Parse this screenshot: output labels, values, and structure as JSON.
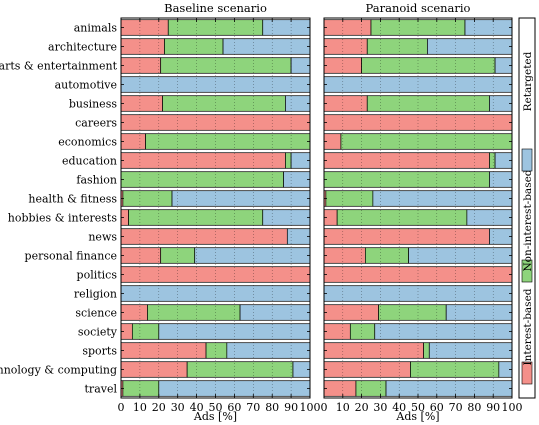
{
  "chart_data": [
    {
      "type": "bar",
      "orientation": "horizontal",
      "stacked": true,
      "title": "Baseline scenario",
      "xlabel": "Ads [%]",
      "xlim": [
        0,
        100
      ],
      "xticks": [
        0,
        10,
        20,
        30,
        40,
        50,
        60,
        70,
        80,
        90,
        100
      ],
      "grid": true,
      "categories": [
        "animals",
        "architecture",
        "arts & entertainment",
        "automotive",
        "business",
        "careers",
        "economics",
        "education",
        "fashion",
        "health & fitness",
        "hobbies & interests",
        "news",
        "personal finance",
        "politics",
        "religion",
        "science",
        "society",
        "sports",
        "technology & computing",
        "travel"
      ],
      "series": [
        {
          "name": "Interest-based",
          "color": "#f4908a",
          "values": [
            25,
            23,
            21,
            0,
            22,
            100,
            13,
            87,
            0,
            1,
            4,
            88,
            21,
            100,
            0,
            14,
            6,
            45,
            35,
            1
          ]
        },
        {
          "name": "Non-interest-based",
          "color": "#8ed47c",
          "values": [
            50,
            31,
            69,
            0,
            65,
            0,
            87,
            3,
            86,
            26,
            71,
            0,
            18,
            0,
            0,
            49,
            14,
            11,
            56,
            19
          ]
        },
        {
          "name": "Retargeted",
          "color": "#9dc4e0",
          "values": [
            25,
            46,
            10,
            100,
            13,
            0,
            0,
            10,
            14,
            73,
            25,
            12,
            61,
            0,
            100,
            37,
            80,
            44,
            9,
            80
          ]
        }
      ]
    },
    {
      "type": "bar",
      "orientation": "horizontal",
      "stacked": true,
      "title": "Paranoid scenario",
      "xlabel": "Ads [%]",
      "xlim": [
        0,
        100
      ],
      "xticks": [
        0,
        10,
        20,
        30,
        40,
        50,
        60,
        70,
        80,
        90,
        100
      ],
      "grid": true,
      "categories": [
        "animals",
        "architecture",
        "arts & entertainment",
        "automotive",
        "business",
        "careers",
        "economics",
        "education",
        "fashion",
        "health & fitness",
        "hobbies & interests",
        "news",
        "personal finance",
        "politics",
        "religion",
        "science",
        "society",
        "sports",
        "technology & computing",
        "travel"
      ],
      "series": [
        {
          "name": "Interest-based",
          "color": "#f4908a",
          "values": [
            25,
            23,
            20,
            0,
            23,
            100,
            9,
            88,
            0,
            1,
            7,
            88,
            22,
            100,
            0,
            29,
            14,
            53,
            46,
            17
          ]
        },
        {
          "name": "Non-interest-based",
          "color": "#8ed47c",
          "values": [
            50,
            32,
            71,
            0,
            65,
            0,
            91,
            3,
            88,
            25,
            69,
            0,
            23,
            0,
            0,
            36,
            13,
            3,
            47,
            16
          ]
        },
        {
          "name": "Retargeted",
          "color": "#9dc4e0",
          "values": [
            25,
            45,
            9,
            100,
            12,
            0,
            0,
            9,
            12,
            74,
            24,
            12,
            55,
            0,
            100,
            35,
            73,
            44,
            7,
            67
          ]
        }
      ]
    }
  ],
  "legend": {
    "placement": "right",
    "items": [
      {
        "label": "Interest-based",
        "color": "#f4908a"
      },
      {
        "label": "Non-interest-based",
        "color": "#8ed47c"
      },
      {
        "label": "Retargeted",
        "color": "#9dc4e0"
      }
    ]
  }
}
